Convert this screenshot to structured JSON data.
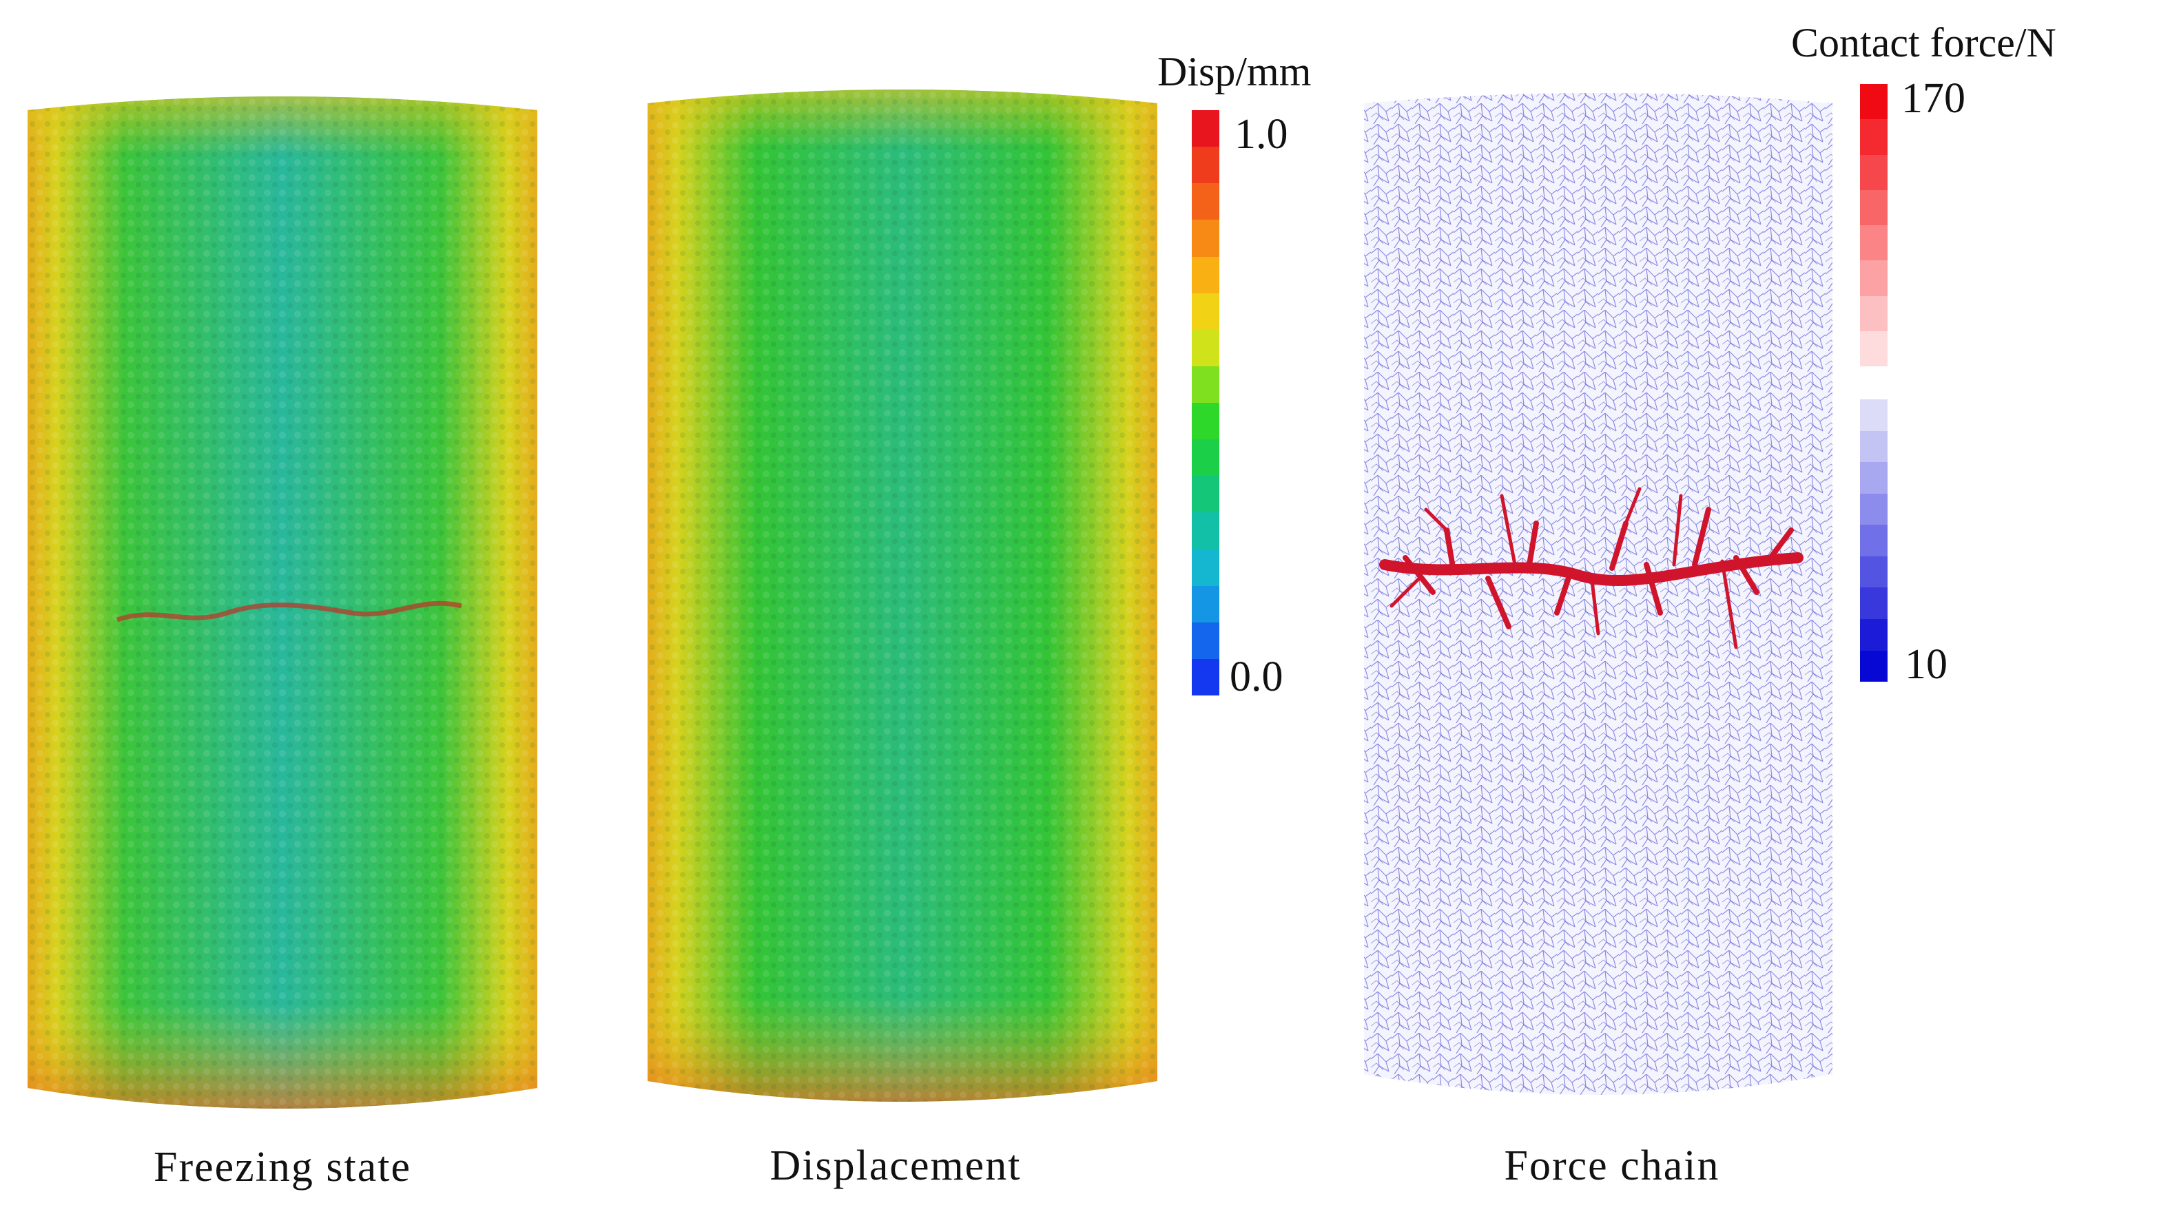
{
  "panels": [
    {
      "caption": "Freezing state",
      "kind": "displacement-cylinder"
    },
    {
      "caption": "Displacement",
      "kind": "displacement-cylinder"
    },
    {
      "caption": "Force chain",
      "kind": "force-chain-cylinder"
    }
  ],
  "disp_colorbar": {
    "title": "Disp/mm",
    "max_label": "1.0",
    "min_label": "0.0",
    "colors": [
      "#e8141e",
      "#ee3c1c",
      "#f4621a",
      "#f68a14",
      "#f8b012",
      "#f2d214",
      "#cfe21a",
      "#7ee01e",
      "#2ed82a",
      "#1ccf48",
      "#14c678",
      "#12c0a8",
      "#14b6d0",
      "#1496e4",
      "#1466ec",
      "#1438f0"
    ]
  },
  "force_colorbar": {
    "title": "Contact force/N",
    "max_label": "170",
    "min_label": "10",
    "upper_colors": [
      "#f00a14",
      "#f42a30",
      "#f6484c",
      "#f86668",
      "#fa8486",
      "#fca2a4",
      "#fdc0c2",
      "#fedcde"
    ],
    "lower_colors": [
      "#dcdcf8",
      "#c4c4f4",
      "#a8a8f0",
      "#8c8cec",
      "#7070e8",
      "#5454e2",
      "#3838dc",
      "#1c1cd8",
      "#0808d4"
    ]
  },
  "colors": {
    "particle_edge_red": "#e8401c",
    "particle_edge_yellow": "#e4d21a",
    "particle_mid_green": "#36c23a",
    "particle_core_cyan": "#2ab8a0",
    "network_blue": "#3434cc",
    "chain_red": "#d0142c"
  }
}
